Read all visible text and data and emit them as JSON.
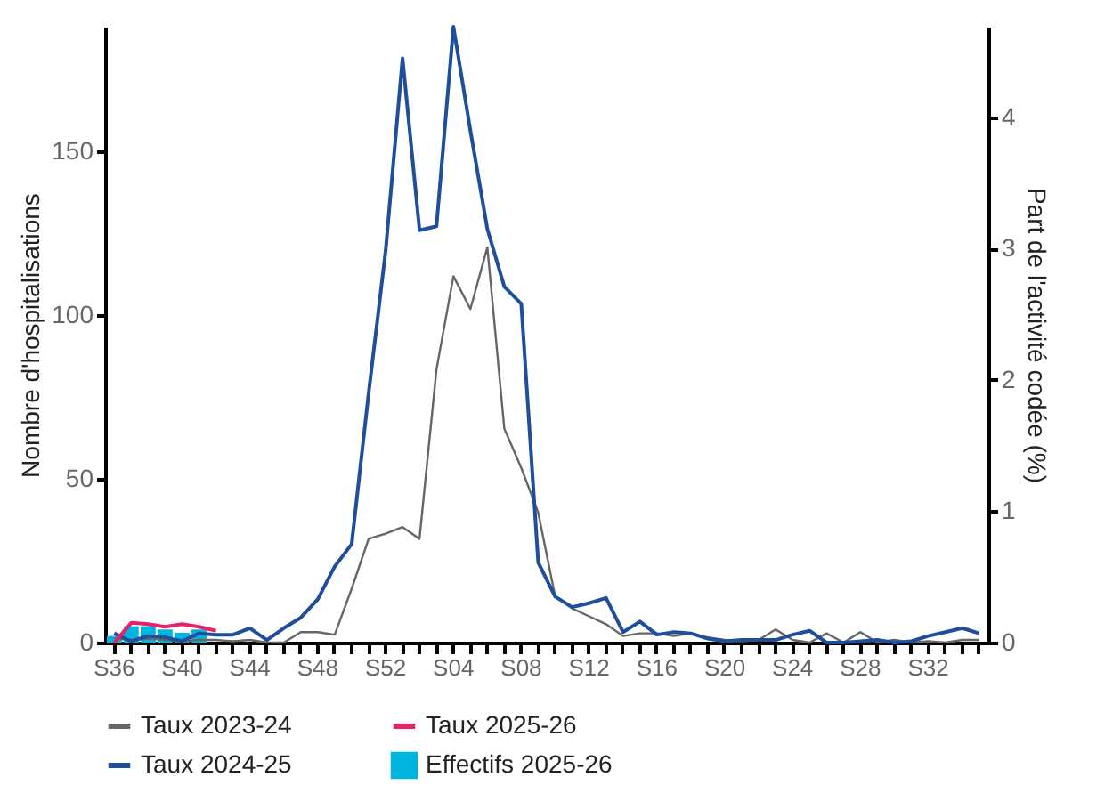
{
  "chart_data": {
    "type": "line",
    "xlabel": null,
    "ylabel": "Nombre d'hospitalisations",
    "y2label": "Part de l'activité codée (%)",
    "categories": [
      "S36",
      null,
      null,
      null,
      "S40",
      null,
      null,
      null,
      "S44",
      null,
      null,
      null,
      "S48",
      null,
      null,
      null,
      "S52",
      null,
      null,
      null,
      "S04",
      null,
      null,
      null,
      "S08",
      null,
      null,
      null,
      "S12",
      null,
      null,
      null,
      "S16",
      null,
      null,
      null,
      "S20",
      null,
      null,
      null,
      "S24",
      null,
      null,
      null,
      "S28",
      null,
      null,
      null,
      "S32",
      null,
      null,
      null
    ],
    "ylim": [
      0,
      188
    ],
    "yticks": [
      0,
      50,
      100,
      150
    ],
    "y2lim": [
      0,
      4.69
    ],
    "y2ticks": [
      0,
      1,
      2,
      3,
      4
    ],
    "grid": false,
    "legend": "bottom",
    "marker": "none",
    "series": [
      {
        "name": "Taux 2023-24",
        "axis": "y2",
        "color": "#666666",
        "values": [
          0.03,
          0.02,
          0.03,
          0.02,
          0.01,
          0.02,
          0.02,
          0.01,
          0.02,
          0,
          0,
          0.08,
          0.08,
          0.06,
          0.41,
          0.79,
          0.83,
          0.88,
          0.79,
          2.08,
          2.79,
          2.54,
          3.01,
          1.63,
          1.33,
          0.99,
          0.35,
          0.26,
          0.2,
          0.14,
          0.05,
          0.07,
          0.07,
          0.05,
          0.07,
          0.04,
          0.02,
          0.01,
          0.02,
          0.1,
          0.02,
          0,
          0.07,
          0,
          0.08,
          0,
          0.02,
          0,
          0.01,
          0,
          0.02,
          0.02
        ]
      },
      {
        "name": "Taux 2024-25",
        "axis": "y2",
        "color": "#1f4e9c",
        "values": [
          0.07,
          0.01,
          0.05,
          0.04,
          0.01,
          0.07,
          0.06,
          0.06,
          0.11,
          0.02,
          0.11,
          0.19,
          0.33,
          0.58,
          0.75,
          1.9,
          2.98,
          4.45,
          3.14,
          3.17,
          4.69,
          3.9,
          3.15,
          2.71,
          2.58,
          0.61,
          0.35,
          0.27,
          0.3,
          0.34,
          0.08,
          0.16,
          0.06,
          0.08,
          0.07,
          0.03,
          0.01,
          0.02,
          0.02,
          0.02,
          0.06,
          0.09,
          0,
          0,
          0.01,
          0.02,
          0,
          0.01,
          0.05,
          0.08,
          0.11,
          0.07
        ]
      },
      {
        "name": "Taux 2025-26",
        "axis": "y2",
        "color": "#e5226b",
        "values": [
          0,
          0.15,
          0.14,
          0.12,
          0.14,
          0.12,
          0.09,
          null,
          null,
          null,
          null,
          null,
          null,
          null,
          null,
          null,
          null,
          null,
          null,
          null,
          null,
          null,
          null,
          null,
          null,
          null,
          null,
          null,
          null,
          null,
          null,
          null,
          null,
          null,
          null,
          null,
          null,
          null,
          null,
          null,
          null,
          null,
          null,
          null,
          null,
          null,
          null,
          null,
          null,
          null,
          null,
          null
        ]
      },
      {
        "name": "Effectifs 2025-26",
        "type": "bar",
        "color": "#00b4e0",
        "values": [
          2,
          5,
          5,
          4,
          3,
          4,
          null,
          null,
          null,
          null,
          null,
          null,
          null,
          null,
          null,
          null,
          null,
          null,
          null,
          null,
          null,
          null,
          null,
          null,
          null,
          null,
          null,
          null,
          null,
          null,
          null,
          null,
          null,
          null,
          null,
          null,
          null,
          null,
          null,
          null,
          null,
          null,
          null,
          null,
          null,
          null,
          null,
          null,
          null,
          null,
          null,
          null
        ]
      }
    ]
  }
}
